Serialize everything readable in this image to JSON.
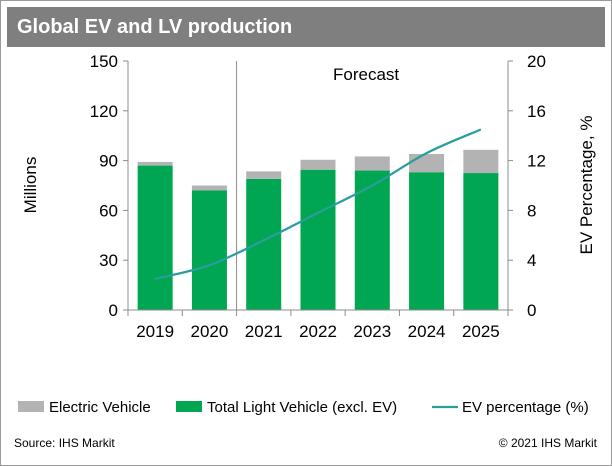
{
  "title": "Global EV and LV production",
  "footer": {
    "source": "Source: IHS Markit",
    "copyright": "© 2021 IHS Markit"
  },
  "colors": {
    "title_bg": "#7f7f7f",
    "ev_bar": "#b3b3b3",
    "lv_bar": "#00a651",
    "ev_line": "#2a9d9d"
  },
  "chart_data": {
    "type": "bar",
    "stacked": true,
    "categories": [
      "2019",
      "2020",
      "2021",
      "2022",
      "2023",
      "2024",
      "2025"
    ],
    "series": [
      {
        "name": "Electric Vehicle",
        "kind": "bar",
        "axis": "left",
        "values": [
          2.2,
          3.0,
          4.5,
          6.0,
          8.5,
          11.0,
          14.0
        ]
      },
      {
        "name": "Total Light Vehicle (excl. EV)",
        "kind": "bar",
        "axis": "left",
        "values": [
          87.0,
          72.0,
          79.0,
          84.5,
          84.0,
          83.0,
          82.5
        ]
      },
      {
        "name": "EV percentage (%)",
        "kind": "line",
        "axis": "right",
        "values": [
          2.5,
          3.6,
          5.6,
          7.8,
          10.0,
          12.6,
          14.5
        ]
      }
    ],
    "ylabel": "Millions",
    "y2label": "EV Percentage, %",
    "ylim": [
      0,
      150
    ],
    "y2lim": [
      0,
      20
    ],
    "yticks": [
      "0",
      "30",
      "60",
      "90",
      "120",
      "150"
    ],
    "y2ticks": [
      "0",
      "4",
      "8",
      "12",
      "16",
      "20"
    ],
    "annotation": "Forecast",
    "forecast_start": "2021",
    "legend_position": "bottom",
    "grid": false
  }
}
